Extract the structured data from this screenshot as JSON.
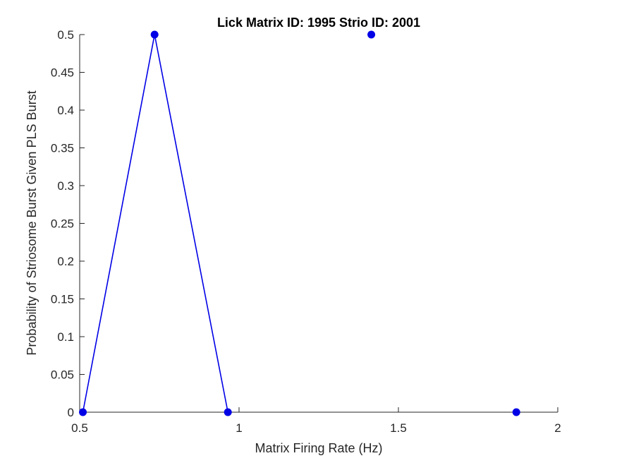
{
  "chart_data": {
    "type": "line",
    "title": "Lick Matrix ID: 1995 Strio ID: 2001",
    "xlabel": "Matrix Firing Rate (Hz)",
    "ylabel": "Probability of Striosome Burst Given PLS Burst",
    "xlim": [
      0.5,
      2
    ],
    "ylim": [
      0,
      0.5
    ],
    "xticks": [
      0.5,
      1,
      1.5,
      2
    ],
    "xtick_labels": [
      "0.5",
      "1",
      "1.5",
      "2"
    ],
    "yticks": [
      0,
      0.05,
      0.1,
      0.15,
      0.2,
      0.25,
      0.3,
      0.35,
      0.4,
      0.45,
      0.5
    ],
    "ytick_labels": [
      "0",
      "0.05",
      "0.1",
      "0.15",
      "0.2",
      "0.25",
      "0.3",
      "0.35",
      "0.4",
      "0.45",
      "0.5"
    ],
    "grid": false,
    "series": [
      {
        "x": [
          0.51,
          0.735,
          0.965,
          1.415,
          1.87
        ],
        "y": [
          0,
          0.5,
          0,
          0.5,
          0
        ],
        "connected": [
          true,
          true,
          true,
          false,
          false
        ],
        "color": "#0000e6"
      }
    ]
  }
}
